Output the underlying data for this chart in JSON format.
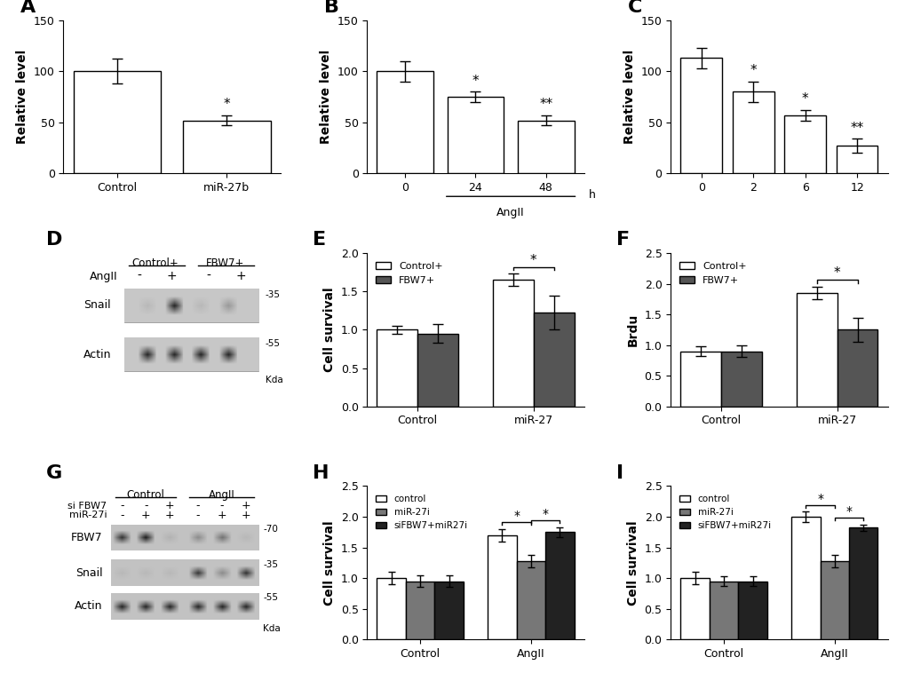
{
  "panel_A": {
    "categories": [
      "Control",
      "miR-27b"
    ],
    "values": [
      100,
      52
    ],
    "errors": [
      12,
      5
    ],
    "sig": [
      "",
      "*"
    ],
    "ylabel": "Relative level",
    "ylim": [
      0,
      150
    ],
    "yticks": [
      0,
      50,
      100,
      150
    ]
  },
  "panel_B": {
    "categories": [
      "0",
      "24",
      "48"
    ],
    "values": [
      100,
      75,
      52
    ],
    "errors": [
      10,
      5,
      5
    ],
    "sig": [
      "",
      "*",
      "**"
    ],
    "ylabel": "Relative level",
    "xlabel_text": "AngII",
    "xlabel2": "h",
    "ylim": [
      0,
      150
    ],
    "yticks": [
      0,
      50,
      100,
      150
    ]
  },
  "panel_C": {
    "categories": [
      "0",
      "2",
      "6",
      "12"
    ],
    "values": [
      113,
      80,
      57,
      27
    ],
    "errors": [
      10,
      10,
      5,
      7
    ],
    "sig": [
      "",
      "*",
      "*",
      "**"
    ],
    "ylabel": "Relative level",
    "ylim": [
      0,
      150
    ],
    "yticks": [
      0,
      50,
      100,
      150
    ]
  },
  "panel_E": {
    "group_labels": [
      "Control",
      "miR-27"
    ],
    "series": [
      "Control+",
      "FBW7+"
    ],
    "colors": [
      "white",
      "#555555"
    ],
    "values": [
      [
        1.0,
        0.95
      ],
      [
        1.65,
        1.22
      ]
    ],
    "errors": [
      [
        0.05,
        0.12
      ],
      [
        0.08,
        0.22
      ]
    ],
    "ylabel": "Cell survival",
    "ylim": [
      0.0,
      2.0
    ],
    "yticks": [
      0.0,
      0.5,
      1.0,
      1.5,
      2.0
    ]
  },
  "panel_F": {
    "group_labels": [
      "Control",
      "miR-27"
    ],
    "series": [
      "Control+",
      "FBW7+"
    ],
    "colors": [
      "white",
      "#555555"
    ],
    "values": [
      [
        0.9,
        0.9
      ],
      [
        1.85,
        1.25
      ]
    ],
    "errors": [
      [
        0.08,
        0.1
      ],
      [
        0.1,
        0.2
      ]
    ],
    "ylabel": "Brdu",
    "ylim": [
      0.0,
      2.5
    ],
    "yticks": [
      0.0,
      0.5,
      1.0,
      1.5,
      2.0,
      2.5
    ]
  },
  "panel_H": {
    "group_labels": [
      "Control",
      "AngII"
    ],
    "series": [
      "control",
      "miR-27i",
      "siFBW7+miR27i"
    ],
    "colors": [
      "white",
      "#777777",
      "#222222"
    ],
    "values": [
      [
        1.0,
        0.95,
        0.95
      ],
      [
        1.7,
        1.28,
        1.75
      ]
    ],
    "errors": [
      [
        0.1,
        0.1,
        0.1
      ],
      [
        0.1,
        0.1,
        0.08
      ]
    ],
    "ylabel": "Cell survival",
    "ylim": [
      0.0,
      2.5
    ],
    "yticks": [
      0.0,
      0.5,
      1.0,
      1.5,
      2.0,
      2.5
    ]
  },
  "panel_I": {
    "group_labels": [
      "Control",
      "AngII"
    ],
    "series": [
      "control",
      "miR-27i",
      "siFBW7+miR27i"
    ],
    "colors": [
      "white",
      "#777777",
      "#222222"
    ],
    "values": [
      [
        1.0,
        0.95,
        0.95
      ],
      [
        2.0,
        1.28,
        1.82
      ]
    ],
    "errors": [
      [
        0.1,
        0.08,
        0.08
      ],
      [
        0.08,
        0.1,
        0.05
      ]
    ],
    "ylabel": "Cell survival",
    "ylim": [
      0.0,
      2.5
    ],
    "yticks": [
      0.0,
      0.5,
      1.0,
      1.5,
      2.0,
      2.5
    ]
  },
  "bar_color_white": "#ffffff",
  "bar_edgecolor": "#000000",
  "capsize": 4,
  "label_fontsize": 16,
  "tick_fontsize": 9,
  "axis_label_fontsize": 10
}
